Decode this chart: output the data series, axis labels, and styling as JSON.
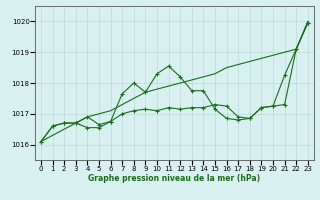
{
  "title": "Graphe pression niveau de la mer (hPa)",
  "bg_color": "#d8f0f0",
  "grid_color": "#b8ddd8",
  "line_color": "#1a6e1a",
  "xlim": [
    -0.5,
    23.5
  ],
  "ylim": [
    1015.5,
    1020.5
  ],
  "yticks": [
    1016,
    1017,
    1018,
    1019,
    1020
  ],
  "xticks": [
    0,
    1,
    2,
    3,
    4,
    5,
    6,
    7,
    8,
    9,
    10,
    11,
    12,
    13,
    14,
    15,
    16,
    17,
    18,
    19,
    20,
    21,
    22,
    23
  ],
  "series": [
    {
      "x": [
        0,
        1,
        2,
        3,
        4,
        5,
        6,
        7,
        8,
        9,
        10,
        11,
        12,
        13,
        14,
        15,
        16,
        17,
        18,
        19,
        20,
        21,
        22,
        23
      ],
      "y": [
        1016.1,
        1016.3,
        1016.5,
        1016.7,
        1016.9,
        1017.0,
        1017.1,
        1017.3,
        1017.5,
        1017.7,
        1017.8,
        1017.9,
        1018.0,
        1018.1,
        1018.2,
        1018.3,
        1018.5,
        1018.6,
        1018.7,
        1018.8,
        1018.9,
        1019.0,
        1019.1,
        1020.0
      ],
      "markers": false
    },
    {
      "x": [
        0,
        1,
        2,
        3,
        4,
        5,
        6,
        7,
        8,
        9,
        10,
        11,
        12,
        13,
        14,
        15,
        16,
        17,
        18,
        19,
        20,
        21,
        22,
        23
      ],
      "y": [
        1016.1,
        1016.6,
        1016.7,
        1016.7,
        1016.55,
        1016.55,
        1016.75,
        1017.65,
        1018.0,
        1017.7,
        1018.3,
        1018.55,
        1018.2,
        1017.75,
        1017.75,
        1017.15,
        1016.85,
        1016.8,
        1016.85,
        1017.2,
        1017.25,
        1018.25,
        1019.1,
        1019.95
      ],
      "markers": true
    },
    {
      "x": [
        0,
        1,
        2,
        3,
        4,
        5,
        6,
        7,
        8,
        9,
        10,
        11,
        12,
        13,
        14,
        15,
        16,
        17,
        18,
        19,
        20,
        21,
        22,
        23
      ],
      "y": [
        1016.1,
        1016.6,
        1016.7,
        1016.7,
        1016.9,
        1016.65,
        1016.75,
        1017.0,
        1017.1,
        1017.15,
        1017.1,
        1017.2,
        1017.15,
        1017.2,
        1017.2,
        1017.3,
        1017.25,
        1016.9,
        1016.85,
        1017.2,
        1017.25,
        1017.3,
        1019.1,
        1019.95
      ],
      "markers": true
    }
  ]
}
